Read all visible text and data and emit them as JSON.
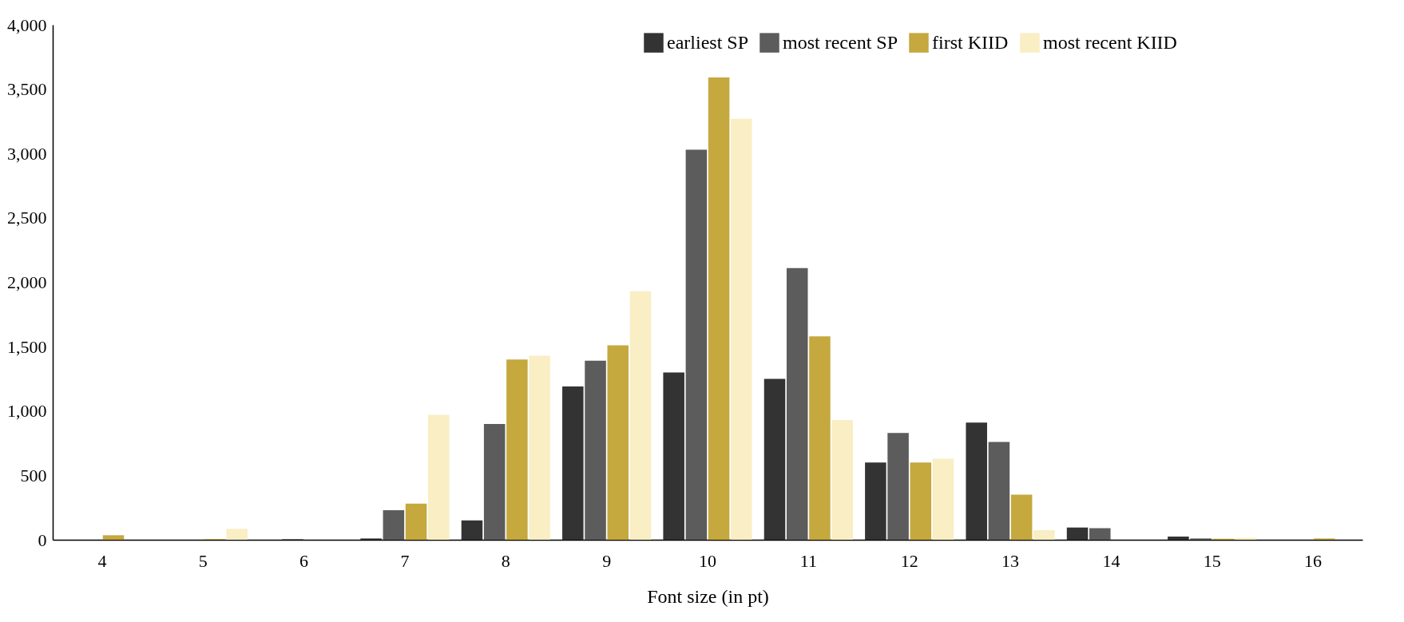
{
  "chart_data": {
    "type": "bar",
    "xlabel": "Font size (in pt)",
    "categories": [
      "4",
      "5",
      "6",
      "7",
      "8",
      "9",
      "10",
      "11",
      "12",
      "13",
      "14",
      "15",
      "16"
    ],
    "series": [
      {
        "name": "earliest SP",
        "color": "#333333",
        "values": [
          0,
          0,
          0,
          10,
          150,
          1190,
          1300,
          1250,
          600,
          910,
          95,
          25,
          0
        ]
      },
      {
        "name": "most recent SP",
        "color": "#5c5c5c",
        "values": [
          0,
          0,
          5,
          230,
          900,
          1390,
          3030,
          2110,
          830,
          760,
          90,
          10,
          0
        ]
      },
      {
        "name": "first KIID",
        "color": "#c5a83e",
        "values": [
          35,
          5,
          0,
          280,
          1400,
          1510,
          3590,
          1580,
          600,
          350,
          0,
          8,
          10
        ]
      },
      {
        "name": "most recent KIID",
        "color": "#f9eec4",
        "values": [
          0,
          85,
          0,
          970,
          1430,
          1930,
          3270,
          930,
          630,
          75,
          0,
          15,
          0
        ]
      }
    ],
    "ylim": [
      0,
      4000
    ],
    "yticks": [
      0,
      500,
      {
        "value": 1000,
        "label": "1,000"
      },
      {
        "value": 1500,
        "label": "1,500"
      },
      {
        "value": 2000,
        "label": "2,000"
      },
      {
        "value": 2500,
        "label": "2,500"
      },
      {
        "value": 3000,
        "label": "3,000"
      },
      {
        "value": 3500,
        "label": "3,500"
      },
      {
        "value": 4000,
        "label": "4,000"
      }
    ],
    "grid": false,
    "legend": "top"
  }
}
